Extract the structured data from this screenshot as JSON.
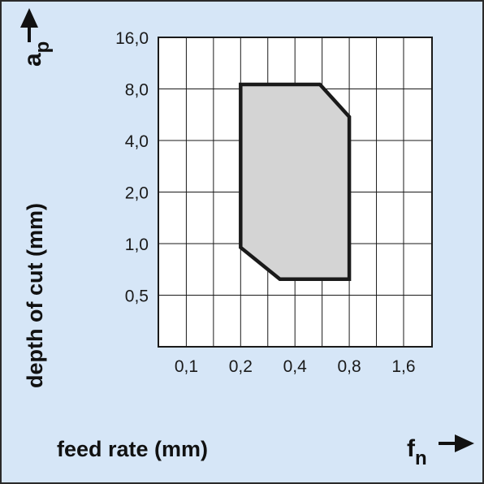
{
  "chart_data": {
    "type": "area",
    "x_scale": "log2",
    "y_scale": "log2",
    "x_ticks": [
      "0,1",
      "0,2",
      "0,4",
      "0,8",
      "1,6"
    ],
    "x_tick_values": [
      0.1,
      0.2,
      0.4,
      0.8,
      1.6
    ],
    "y_ticks": [
      "0,5",
      "1,0",
      "2,0",
      "4,0",
      "8,0",
      "16,0"
    ],
    "y_tick_values": [
      0.5,
      1.0,
      2.0,
      4.0,
      8.0,
      16.0
    ],
    "xlim": [
      0.07,
      2.3
    ],
    "ylim": [
      0.25,
      16.0
    ],
    "grid": true,
    "xlabel": "feed rate (mm)",
    "ylabel": "depth of cut (mm)",
    "x_symbol_main": "f",
    "x_symbol_sub": "n",
    "y_symbol_main": "a",
    "y_symbol_sub": "p",
    "region": {
      "name": "",
      "points": [
        {
          "x": 0.2,
          "y": 0.95
        },
        {
          "x": 0.2,
          "y": 8.5
        },
        {
          "x": 0.55,
          "y": 8.5
        },
        {
          "x": 0.8,
          "y": 5.5
        },
        {
          "x": 0.8,
          "y": 0.62
        },
        {
          "x": 0.33,
          "y": 0.62
        }
      ]
    }
  },
  "colors": {
    "background": "#d6e6f7",
    "plot_background": "#ffffff",
    "grid": "#1a1a1a",
    "region_fill": "#d4d4d4",
    "region_stroke": "#1a1a1a"
  }
}
